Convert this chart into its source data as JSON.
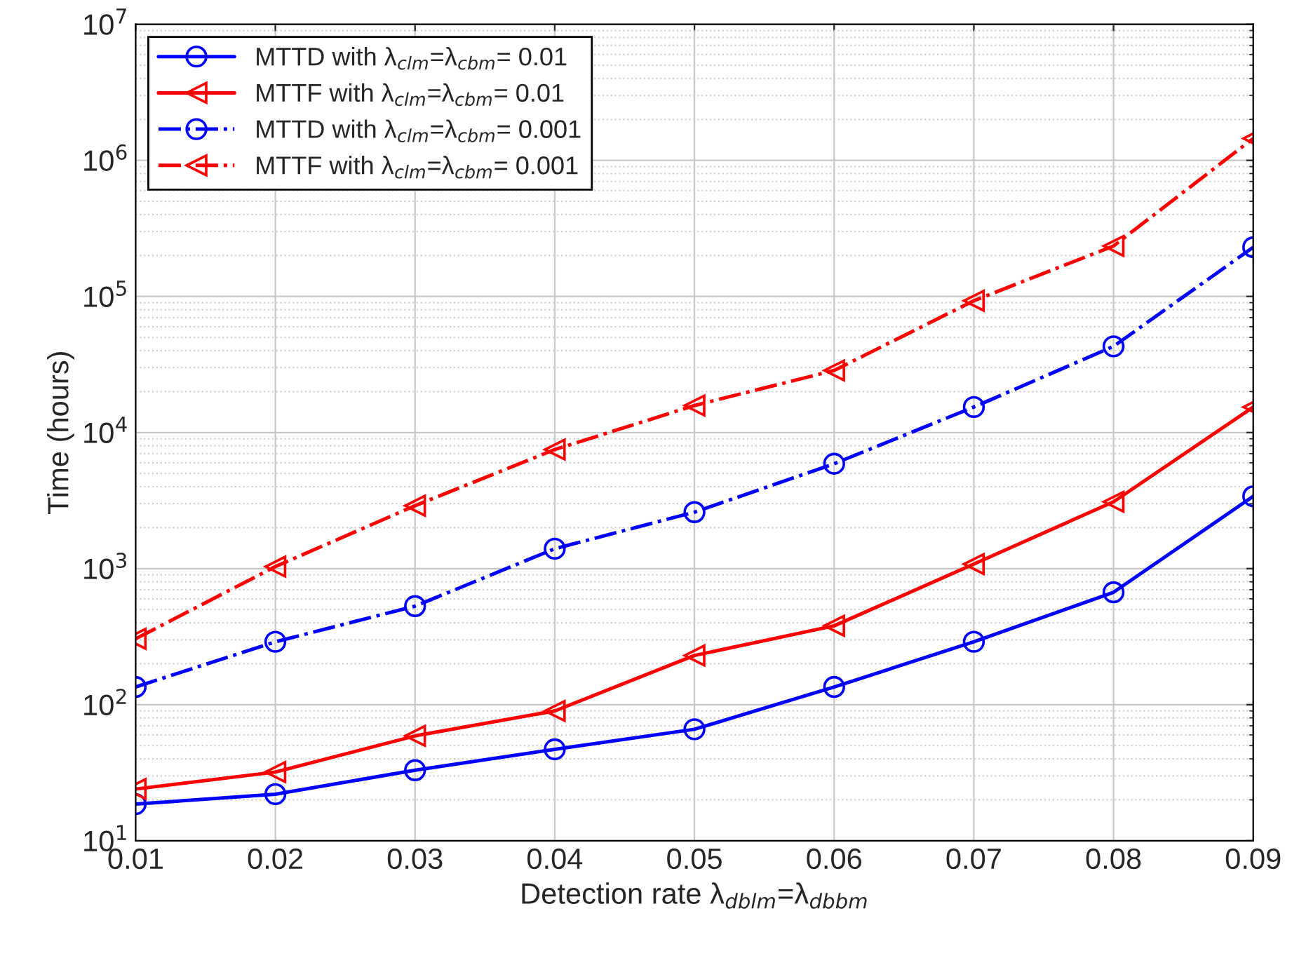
{
  "chart_data": {
    "type": "line",
    "xlabel": "Detection rate λ$_{dblm}$=λ$_{dbbm}$",
    "ylabel": "Time (hours)",
    "x": [
      0.01,
      0.02,
      0.03,
      0.04,
      0.05,
      0.06,
      0.07,
      0.08,
      0.09
    ],
    "series": [
      {
        "name": "MTTD with λ$_{clm}$=λ$_{cbm}$= 0.01",
        "color": "#0000ff",
        "marker": "circle",
        "line_style": "solid",
        "values": [
          18.6,
          22,
          33,
          47,
          66,
          135,
          290,
          670,
          3400
        ]
      },
      {
        "name": "MTTF with λ$_{clm}$=λ$_{cbm}$= 0.01",
        "color": "#ff0000",
        "marker": "triangle",
        "line_style": "solid",
        "values": [
          24,
          32,
          59,
          90,
          230,
          380,
          1080,
          3100,
          15400
        ]
      },
      {
        "name": "MTTD with λ$_{clm}$=λ$_{cbm}$= 0.001",
        "color": "#0000ff",
        "marker": "circle",
        "line_style": "dashdot",
        "values": [
          135,
          290,
          530,
          1400,
          2600,
          5900,
          15400,
          43000,
          230000
        ]
      },
      {
        "name": "MTTF with λ$_{clm}$=λ$_{cbm}$= 0.001",
        "color": "#ff0000",
        "marker": "triangle",
        "line_style": "dashdot",
        "values": [
          305,
          1035,
          2900,
          7500,
          15800,
          28600,
          93000,
          235000,
          1450000
        ]
      }
    ],
    "log": "y",
    "xlim": [
      0.01,
      0.09
    ],
    "xticks": [
      0.01,
      0.02,
      0.03,
      0.04,
      0.05,
      0.06,
      0.07,
      0.08,
      0.09
    ],
    "ylim": [
      10,
      10000000
    ],
    "yticks": [
      {
        "value": 10,
        "label": "10$^{1}$"
      },
      {
        "value": 100,
        "label": "10$^{2}$"
      },
      {
        "value": 1000,
        "label": "10$^{3}$"
      },
      {
        "value": 10000,
        "label": "10$^{4}$"
      },
      {
        "value": 100000,
        "label": "10$^{5}$"
      },
      {
        "value": 1000000,
        "label": "10$^{6}$"
      },
      {
        "value": 10000000,
        "label": "10$^{7}$"
      }
    ],
    "grid": true,
    "legend": "top left"
  }
}
